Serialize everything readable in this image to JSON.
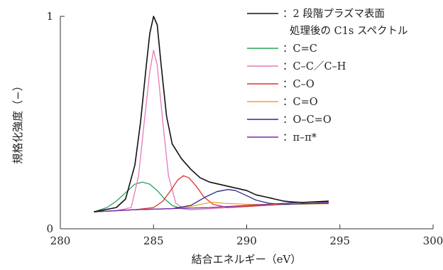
{
  "chart_data": {
    "type": "line",
    "title": "",
    "xlabel": "結合エネルギー（eV）",
    "ylabel": "規格化強度（−）",
    "xlim": [
      280,
      300
    ],
    "ylim": [
      0,
      1
    ],
    "x_ticks": [
      "280",
      "285",
      "290",
      "295",
      "300"
    ],
    "y_ticks": [
      "0",
      "1"
    ],
    "grid": false,
    "legend_position": "top-right",
    "series": [
      {
        "name_lines": [
          "：2 段階プラズマ表面",
          "処理後の C1s スペクトル"
        ],
        "color": "#111111",
        "x": [
          281.8,
          283.0,
          283.5,
          284.0,
          284.3,
          284.6,
          284.8,
          285.0,
          285.2,
          285.4,
          285.7,
          286.0,
          286.5,
          287.0,
          287.5,
          288.0,
          288.5,
          289.0,
          289.5,
          290.0,
          290.5,
          291.0,
          291.5,
          292.0,
          292.5,
          293.0,
          294.4
        ],
        "values": [
          0.08,
          0.1,
          0.14,
          0.3,
          0.5,
          0.76,
          0.92,
          1.0,
          0.96,
          0.78,
          0.53,
          0.4,
          0.33,
          0.28,
          0.24,
          0.22,
          0.21,
          0.2,
          0.19,
          0.18,
          0.16,
          0.15,
          0.14,
          0.13,
          0.126,
          0.124,
          0.13
        ]
      },
      {
        "name": "：C=C",
        "color": "#2aa05a",
        "x": [
          281.8,
          282.5,
          283.0,
          283.5,
          284.0,
          284.4,
          284.8,
          285.2,
          285.6,
          286.0,
          286.5,
          287.0,
          288.0,
          290.0,
          292.0,
          294.4
        ],
        "values": [
          0.08,
          0.1,
          0.13,
          0.17,
          0.21,
          0.22,
          0.21,
          0.18,
          0.14,
          0.11,
          0.095,
          0.09,
          0.095,
          0.105,
          0.115,
          0.12
        ]
      },
      {
        "name": "：C–C／C–H",
        "color": "#e878b8",
        "x": [
          281.8,
          283.0,
          283.8,
          284.2,
          284.5,
          284.8,
          285.0,
          285.2,
          285.5,
          285.8,
          286.2,
          286.6,
          287.0,
          288.0,
          290.0,
          292.0,
          294.4
        ],
        "values": [
          0.08,
          0.085,
          0.1,
          0.25,
          0.5,
          0.74,
          0.84,
          0.77,
          0.5,
          0.25,
          0.12,
          0.095,
          0.09,
          0.095,
          0.105,
          0.115,
          0.12
        ]
      },
      {
        "name": "：C–O",
        "color": "#e03030",
        "x": [
          281.8,
          284.0,
          285.0,
          285.5,
          286.0,
          286.3,
          286.6,
          286.9,
          287.3,
          287.7,
          288.2,
          289.0,
          290.0,
          292.0,
          294.4
        ],
        "values": [
          0.08,
          0.09,
          0.1,
          0.13,
          0.19,
          0.23,
          0.25,
          0.24,
          0.2,
          0.15,
          0.115,
          0.1,
          0.105,
          0.115,
          0.12
        ]
      },
      {
        "name": "：C=O",
        "color": "#f0a030",
        "x": [
          281.8,
          284.0,
          286.0,
          287.0,
          287.8,
          288.2,
          288.8,
          290.0,
          291.0,
          292.0,
          294.4
        ],
        "values": [
          0.08,
          0.09,
          0.095,
          0.105,
          0.12,
          0.125,
          0.12,
          0.115,
          0.115,
          0.115,
          0.118
        ]
      },
      {
        "name": "：O–C=O",
        "color": "#2a2a8a",
        "x": [
          281.8,
          284.0,
          286.0,
          287.0,
          287.8,
          288.4,
          289.0,
          289.4,
          289.9,
          290.5,
          291.2,
          292.0,
          293.0,
          294.4
        ],
        "values": [
          0.08,
          0.09,
          0.095,
          0.11,
          0.15,
          0.175,
          0.185,
          0.18,
          0.16,
          0.135,
          0.12,
          0.115,
          0.118,
          0.12
        ]
      },
      {
        "name": "：π–π*",
        "color": "#7a2ab0",
        "x": [
          281.8,
          284.0,
          286.0,
          288.0,
          290.0,
          291.0,
          292.0,
          293.0,
          294.4
        ],
        "values": [
          0.08,
          0.09,
          0.095,
          0.1,
          0.11,
          0.115,
          0.12,
          0.125,
          0.125
        ]
      }
    ]
  }
}
